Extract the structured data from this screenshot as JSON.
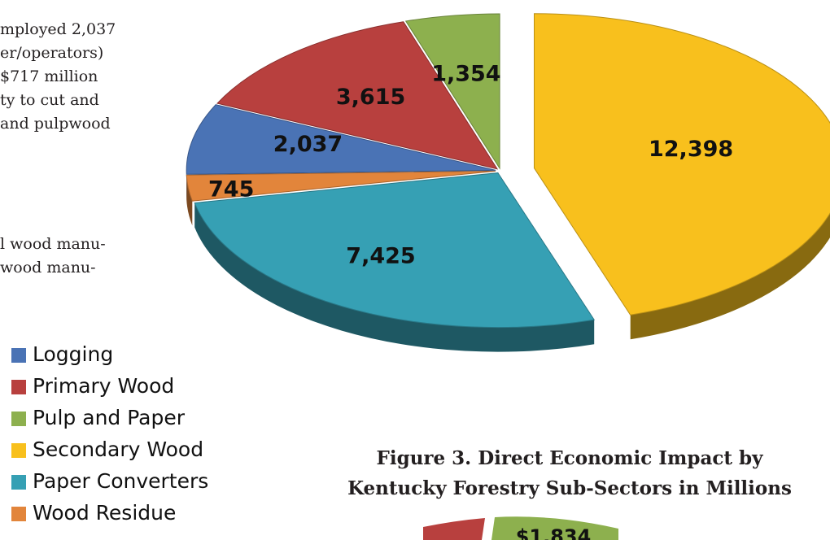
{
  "body_text_top": [
    "mployed 2,037",
    "er/operators)",
    "$717 million",
    "ty to cut and",
    "and pulpwood"
  ],
  "body_text_mid": [
    "l wood manu-",
    " wood manu-"
  ],
  "chart_data": {
    "type": "pie",
    "categories": [
      "Logging",
      "Primary Wood",
      "Pulp and Paper",
      "Secondary Wood",
      "Paper Converters",
      "Wood Residue"
    ],
    "values": [
      2037,
      3615,
      1354,
      12398,
      7425,
      745
    ],
    "data_labels": [
      "2,037",
      "3,615",
      "1,354",
      "12,398",
      "7,425",
      "745"
    ],
    "colors": {
      "Logging": "#4a73b5",
      "Primary Wood": "#b8403e",
      "Pulp and Paper": "#8db04e",
      "Secondary Wood": "#f8c01d",
      "Paper Converters": "#36a0b4",
      "Wood Residue": "#e2853b"
    },
    "style": "3D exploded pie",
    "legend_position": "left"
  },
  "caption": {
    "line1": "Figure 3. Direct Economic Impact by",
    "line2": "Kentucky Forestry Sub-Sectors in Millions"
  },
  "next_chart_partial": {
    "visible_label": "$1,834"
  }
}
